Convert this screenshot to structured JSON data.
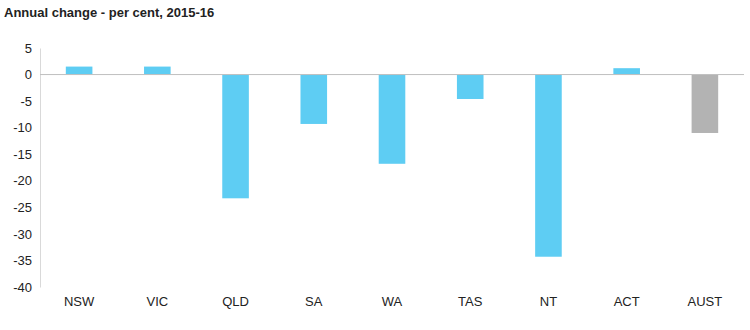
{
  "chart_data": {
    "type": "bar",
    "title": "Annual change - per cent, 2015-16",
    "categories": [
      "NSW",
      "VIC",
      "QLD",
      "SA",
      "WA",
      "TAS",
      "NT",
      "ACT",
      "AUST"
    ],
    "values": [
      1.5,
      1.5,
      -23.3,
      -9.3,
      -16.8,
      -4.6,
      -34.3,
      1.2,
      -11.0
    ],
    "colors": [
      "#5ecdf3",
      "#5ecdf3",
      "#5ecdf3",
      "#5ecdf3",
      "#5ecdf3",
      "#5ecdf3",
      "#5ecdf3",
      "#5ecdf3",
      "#b3b3b3"
    ],
    "ylim": [
      -40,
      5
    ],
    "yticks": [
      5,
      0,
      -5,
      -10,
      -15,
      -20,
      -25,
      -30,
      -35,
      -40
    ],
    "grid": false
  }
}
